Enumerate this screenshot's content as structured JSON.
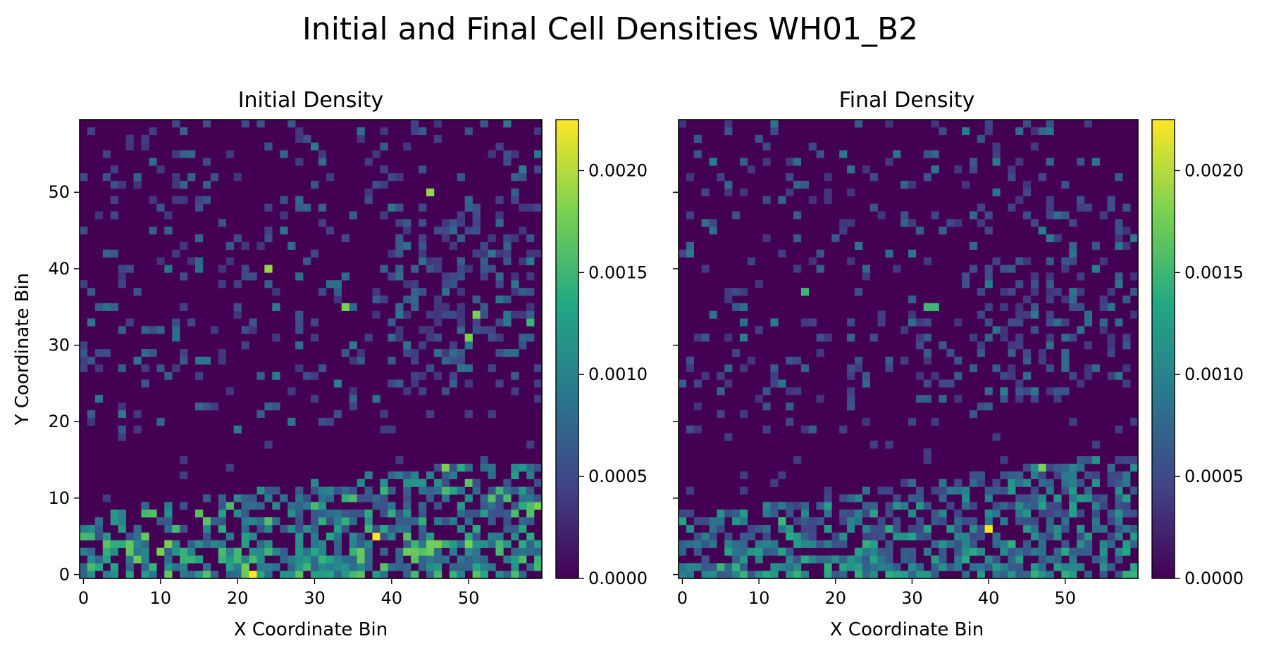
{
  "figure": {
    "suptitle": "Initial and Final Cell Densities WH01_B2",
    "colormap": [
      "#440154",
      "#414487",
      "#2a788e",
      "#22a884",
      "#7ad151",
      "#fde725"
    ]
  },
  "chart_data": [
    {
      "type": "heatmap",
      "title": "Initial Density",
      "xlabel": "X Coordinate Bin",
      "ylabel": "Y Coordinate Bin",
      "grid_size": [
        60,
        60
      ],
      "xlim": [
        -0.5,
        59.5
      ],
      "ylim": [
        -0.5,
        59.5
      ],
      "x_ticks": [
        0,
        10,
        20,
        30,
        40,
        50
      ],
      "y_ticks": [
        0,
        10,
        20,
        30,
        40,
        50
      ],
      "colorbar": {
        "min": 0,
        "max": 0.00225,
        "ticks": [
          "0.0000",
          "0.0005",
          "0.0010",
          "0.0015",
          "0.0020"
        ]
      },
      "grid": false,
      "description_of_pattern": "sparse low values above y=20, dense higher values in band y=0-15 rising toward right; peak near (22,0) and (38,5)",
      "hotspots": [
        {
          "x": 22,
          "y": 0,
          "v": 0.00225
        },
        {
          "x": 38,
          "y": 5,
          "v": 0.00225
        },
        {
          "x": 45,
          "y": 50,
          "v": 0.0019
        },
        {
          "x": 24,
          "y": 40,
          "v": 0.0019
        },
        {
          "x": 34,
          "y": 35,
          "v": 0.0018
        },
        {
          "x": 51,
          "y": 34,
          "v": 0.0018
        },
        {
          "x": 50,
          "y": 31,
          "v": 0.0018
        },
        {
          "x": 47,
          "y": 14,
          "v": 0.0018
        },
        {
          "x": 59,
          "y": 9,
          "v": 0.0018
        },
        {
          "x": 8,
          "y": 5,
          "v": 0.0017
        },
        {
          "x": 16,
          "y": 0,
          "v": 0.0016
        },
        {
          "x": 58,
          "y": 33,
          "v": 0.0015
        }
      ]
    },
    {
      "type": "heatmap",
      "title": "Final Density",
      "xlabel": "X Coordinate Bin",
      "ylabel": "",
      "grid_size": [
        60,
        60
      ],
      "xlim": [
        -0.5,
        59.5
      ],
      "ylim": [
        -0.5,
        59.5
      ],
      "x_ticks": [
        0,
        10,
        20,
        30,
        40,
        50
      ],
      "colorbar": {
        "min": 0,
        "max": 0.00225,
        "ticks": [
          "0.0000",
          "0.0005",
          "0.0010",
          "0.0015",
          "0.0020"
        ]
      },
      "grid": false,
      "description_of_pattern": "sparse low values above y=20, band y=0-15 with moderate values; peak near (40,6)",
      "hotspots": [
        {
          "x": 40,
          "y": 6,
          "v": 0.00225
        },
        {
          "x": 47,
          "y": 14,
          "v": 0.0018
        },
        {
          "x": 32,
          "y": 35,
          "v": 0.0015
        },
        {
          "x": 33,
          "y": 35,
          "v": 0.0015
        },
        {
          "x": 16,
          "y": 37,
          "v": 0.0015
        },
        {
          "x": 13,
          "y": 7,
          "v": 0.0015
        },
        {
          "x": 27,
          "y": 6,
          "v": 0.0014
        }
      ]
    }
  ]
}
